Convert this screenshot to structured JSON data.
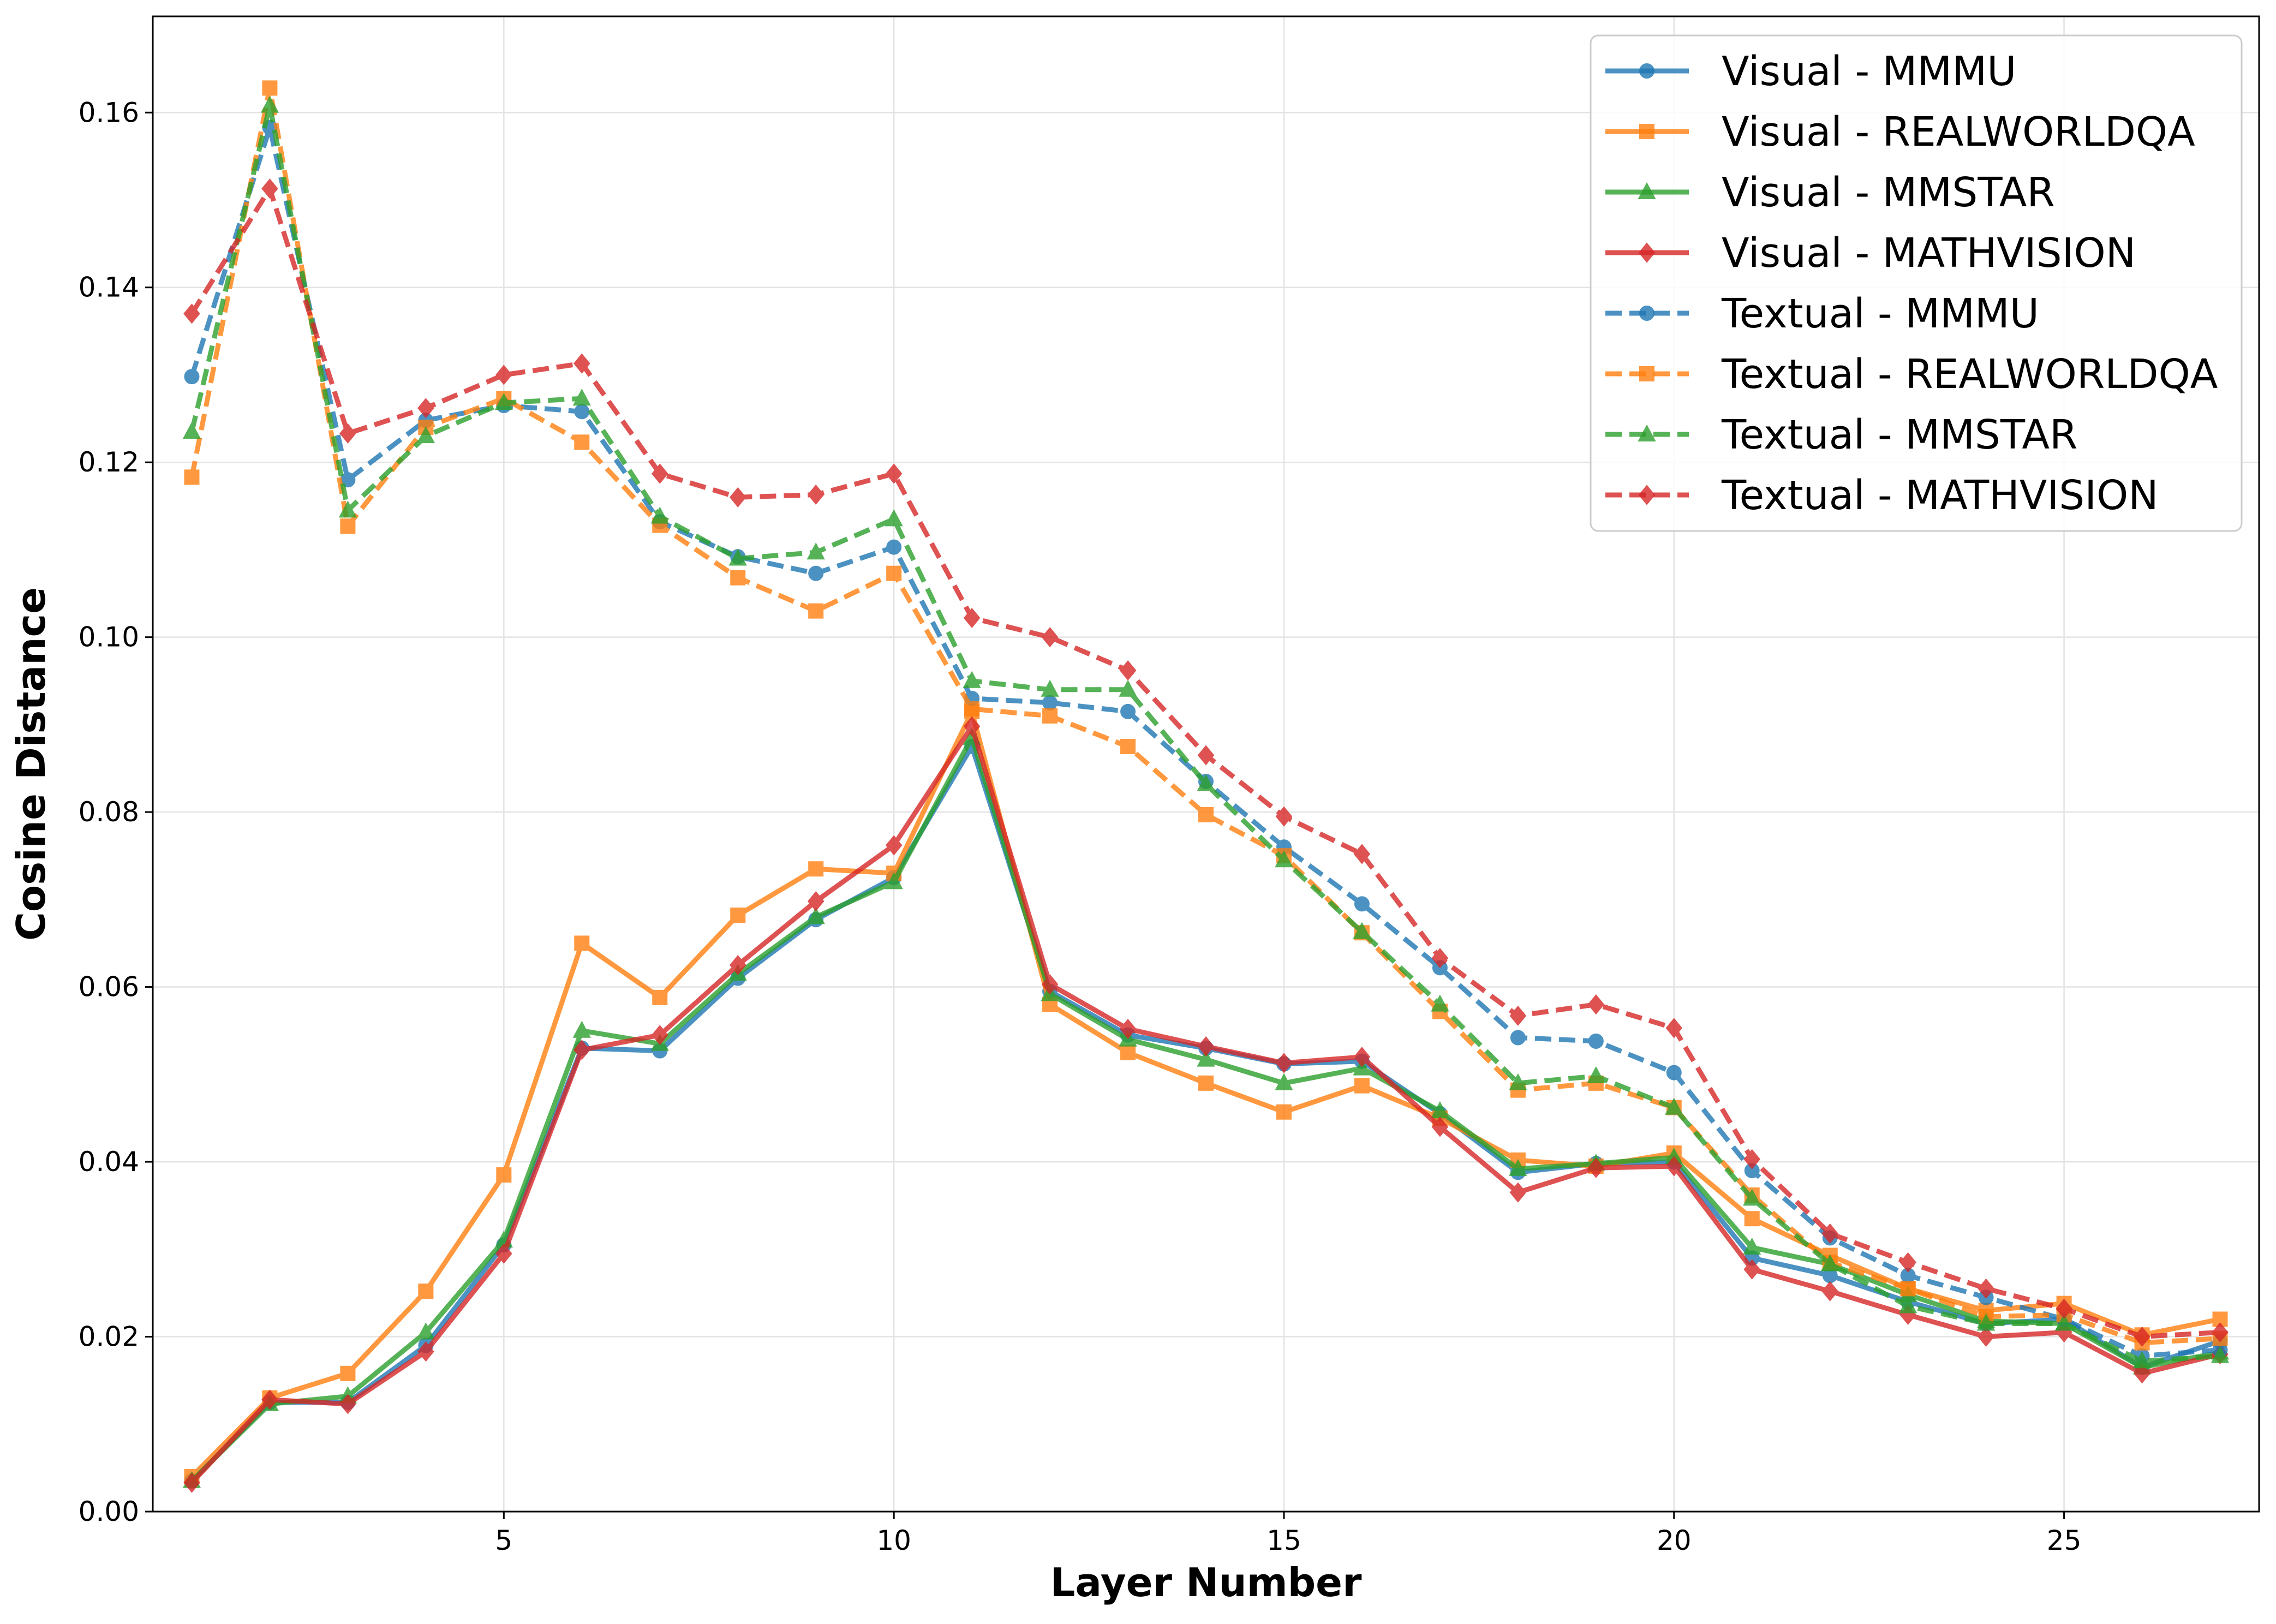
{
  "chart_data": {
    "type": "line",
    "title": "",
    "xlabel": "Layer Number",
    "ylabel": "Cosine Distance",
    "xlim": [
      0.5,
      27.5
    ],
    "ylim": [
      0,
      0.171
    ],
    "xticks": [
      5,
      10,
      15,
      20,
      25
    ],
    "xtick_labels": [
      "5",
      "10",
      "15",
      "20",
      "25"
    ],
    "yticks": [
      0,
      0.02,
      0.04,
      0.06,
      0.08,
      0.1,
      0.12,
      0.14,
      0.16
    ],
    "ytick_labels": [
      "0.00",
      "0.02",
      "0.04",
      "0.06",
      "0.08",
      "0.10",
      "0.12",
      "0.14",
      "0.16"
    ],
    "grid": true,
    "legend_position": "top-right",
    "x": [
      1,
      2,
      3,
      4,
      5,
      6,
      7,
      8,
      9,
      10,
      11,
      12,
      13,
      14,
      15,
      16,
      17,
      18,
      19,
      20,
      21,
      22,
      23,
      24,
      25,
      26,
      27
    ],
    "series": [
      {
        "name": "Visual - MMMU",
        "color": "#1f77b4",
        "dashed": false,
        "marker": "circle",
        "values": [
          0.0035,
          0.0125,
          0.0125,
          0.019,
          0.0305,
          0.053,
          0.0527,
          0.061,
          0.0677,
          0.0725,
          0.0875,
          0.0595,
          0.0545,
          0.053,
          0.0512,
          0.0515,
          0.0455,
          0.0388,
          0.0398,
          0.04,
          0.029,
          0.027,
          0.024,
          0.0215,
          0.022,
          0.0165,
          0.0195
        ]
      },
      {
        "name": "Visual - REALWORLDQA",
        "color": "#ff7f0e",
        "dashed": false,
        "marker": "square",
        "values": [
          0.004,
          0.013,
          0.0158,
          0.0252,
          0.0385,
          0.065,
          0.0588,
          0.0682,
          0.0735,
          0.073,
          0.0915,
          0.058,
          0.0525,
          0.049,
          0.0457,
          0.0487,
          0.045,
          0.0402,
          0.0395,
          0.041,
          0.0335,
          0.0293,
          0.0255,
          0.023,
          0.0238,
          0.0202,
          0.022
        ]
      },
      {
        "name": "Visual - MMSTAR",
        "color": "#2ca02c",
        "dashed": false,
        "marker": "triangle",
        "values": [
          0.0035,
          0.0123,
          0.0132,
          0.0205,
          0.031,
          0.055,
          0.0535,
          0.0615,
          0.068,
          0.072,
          0.0885,
          0.0592,
          0.054,
          0.0517,
          0.049,
          0.0507,
          0.0458,
          0.0392,
          0.0398,
          0.0405,
          0.0302,
          0.0283,
          0.0248,
          0.0218,
          0.0215,
          0.0165,
          0.0182
        ]
      },
      {
        "name": "Visual - MATHVISION",
        "color": "#d62728",
        "dashed": false,
        "marker": "diamond",
        "values": [
          0.0033,
          0.0128,
          0.0123,
          0.0183,
          0.0295,
          0.0528,
          0.0545,
          0.0625,
          0.0698,
          0.0762,
          0.0898,
          0.0603,
          0.0552,
          0.0532,
          0.0513,
          0.052,
          0.044,
          0.0365,
          0.0393,
          0.0395,
          0.0277,
          0.0252,
          0.0225,
          0.02,
          0.0205,
          0.0158,
          0.018
        ]
      },
      {
        "name": "Textual - MMMU",
        "color": "#1f77b4",
        "dashed": true,
        "marker": "circle",
        "values": [
          0.1298,
          0.1583,
          0.118,
          0.1248,
          0.1265,
          0.1258,
          0.1132,
          0.1092,
          0.1073,
          0.1103,
          0.093,
          0.0925,
          0.0915,
          0.0835,
          0.076,
          0.0695,
          0.0622,
          0.0542,
          0.0538,
          0.0502,
          0.039,
          0.0313,
          0.027,
          0.0245,
          0.022,
          0.0178,
          0.0185
        ]
      },
      {
        "name": "Textual - REALWORLDQA",
        "color": "#ff7f0e",
        "dashed": true,
        "marker": "square",
        "values": [
          0.1183,
          0.1628,
          0.1127,
          0.124,
          0.1273,
          0.1223,
          0.1128,
          0.1068,
          0.103,
          0.1073,
          0.0918,
          0.091,
          0.0875,
          0.0797,
          0.075,
          0.0662,
          0.0572,
          0.0482,
          0.049,
          0.0462,
          0.0362,
          0.0285,
          0.0255,
          0.0223,
          0.0225,
          0.0193,
          0.0198
        ]
      },
      {
        "name": "Textual - MMSTAR",
        "color": "#2ca02c",
        "dashed": true,
        "marker": "triangle",
        "values": [
          0.1235,
          0.1608,
          0.1145,
          0.123,
          0.1268,
          0.1273,
          0.1138,
          0.109,
          0.1097,
          0.1135,
          0.095,
          0.094,
          0.094,
          0.0832,
          0.0745,
          0.0663,
          0.058,
          0.049,
          0.0498,
          0.0462,
          0.0358,
          0.0283,
          0.0235,
          0.0215,
          0.0215,
          0.0172,
          0.0178
        ]
      },
      {
        "name": "Textual - MATHVISION",
        "color": "#d62728",
        "dashed": true,
        "marker": "diamond",
        "values": [
          0.137,
          0.1513,
          0.1233,
          0.1262,
          0.13,
          0.1313,
          0.1187,
          0.116,
          0.1163,
          0.1187,
          0.1022,
          0.1,
          0.0962,
          0.0865,
          0.0795,
          0.0752,
          0.0633,
          0.0567,
          0.058,
          0.0553,
          0.0403,
          0.0318,
          0.0285,
          0.0255,
          0.0232,
          0.02,
          0.0205
        ]
      }
    ]
  }
}
